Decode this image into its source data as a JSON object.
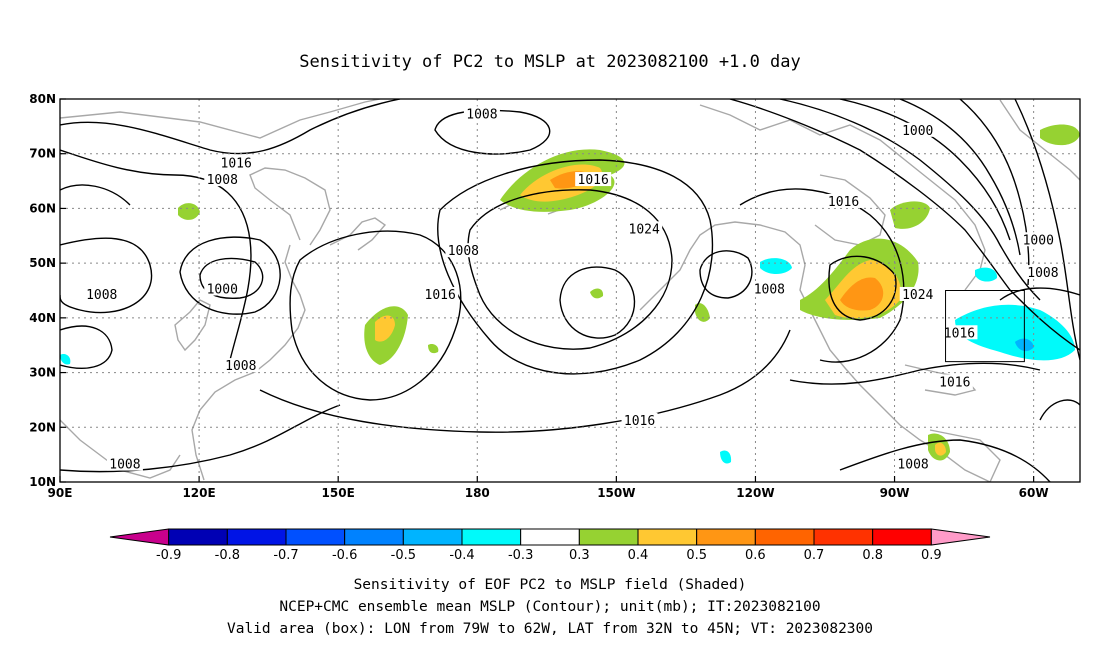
{
  "title": "Sensitivity of PC2 to MSLP at 2023082100 +1.0 day",
  "caption": [
    "Sensitivity of EOF PC2 to MSLP field (Shaded)",
    "NCEP+CMC ensemble mean MSLP (Contour); unit(mb); IT:2023082100",
    "Valid area (box): LON from 79W to 62W, LAT from 32N to 45N; VT: 2023082300"
  ],
  "map": {
    "lon_range": [
      90,
      310
    ],
    "lat_range": [
      10,
      80
    ],
    "lon_ticks": [
      {
        "lon": 90,
        "label": "90E"
      },
      {
        "lon": 120,
        "label": "120E"
      },
      {
        "lon": 150,
        "label": "150E"
      },
      {
        "lon": 180,
        "label": "180"
      },
      {
        "lon": 210,
        "label": "150W"
      },
      {
        "lon": 240,
        "label": "120W"
      },
      {
        "lon": 270,
        "label": "90W"
      },
      {
        "lon": 300,
        "label": "60W"
      }
    ],
    "lat_ticks": [
      {
        "lat": 10,
        "label": "10N"
      },
      {
        "lat": 20,
        "label": "20N"
      },
      {
        "lat": 30,
        "label": "30N"
      },
      {
        "lat": 40,
        "label": "40N"
      },
      {
        "lat": 50,
        "label": "50N"
      },
      {
        "lat": 60,
        "label": "60N"
      },
      {
        "lat": 70,
        "label": "70N"
      },
      {
        "lat": 80,
        "label": "80N"
      }
    ],
    "valid_box": {
      "lon_w": 281,
      "lon_e": 298,
      "lat_s": 32,
      "lat_n": 45
    },
    "contour_labels": [
      {
        "text": "1008",
        "lon": 181,
        "lat": 77
      },
      {
        "text": "1016",
        "lon": 128,
        "lat": 68
      },
      {
        "text": "1008",
        "lon": 125,
        "lat": 65
      },
      {
        "text": "1016",
        "lon": 205,
        "lat": 65
      },
      {
        "text": "1024",
        "lon": 216,
        "lat": 56
      },
      {
        "text": "1008",
        "lon": 177,
        "lat": 52
      },
      {
        "text": "1000",
        "lon": 125,
        "lat": 45
      },
      {
        "text": "1008",
        "lon": 99,
        "lat": 44
      },
      {
        "text": "1016",
        "lon": 172,
        "lat": 44
      },
      {
        "text": "1008",
        "lon": 129,
        "lat": 31
      },
      {
        "text": "1016",
        "lon": 215,
        "lat": 21
      },
      {
        "text": "1008",
        "lon": 104,
        "lat": 13
      },
      {
        "text": "1008",
        "lon": 243,
        "lat": 45
      },
      {
        "text": "1016",
        "lon": 259,
        "lat": 61
      },
      {
        "text": "1000",
        "lon": 275,
        "lat": 74
      },
      {
        "text": "1000",
        "lon": 301,
        "lat": 54
      },
      {
        "text": "1008",
        "lon": 302,
        "lat": 48
      },
      {
        "text": "1024",
        "lon": 275,
        "lat": 44
      },
      {
        "text": "1016",
        "lon": 284,
        "lat": 37
      },
      {
        "text": "1016",
        "lon": 283,
        "lat": 28
      },
      {
        "text": "1008",
        "lon": 274,
        "lat": 13
      }
    ]
  },
  "colorbar": {
    "labels": [
      "-0.9",
      "-0.8",
      "-0.7",
      "-0.6",
      "-0.5",
      "-0.4",
      "-0.3",
      "0.3",
      "0.4",
      "0.5",
      "0.6",
      "0.7",
      "0.8",
      "0.9"
    ],
    "colors": [
      "#c8008c",
      "#0000b4",
      "#0014e6",
      "#0050ff",
      "#0082ff",
      "#00b4ff",
      "#00fafa",
      "#ffffff",
      "#96d232",
      "#ffc832",
      "#ff9614",
      "#ff6400",
      "#ff3200",
      "#ff0000",
      "#ff9bc8"
    ]
  },
  "colors": {
    "coastline": "#a8a8a8",
    "contour": "#000000"
  }
}
